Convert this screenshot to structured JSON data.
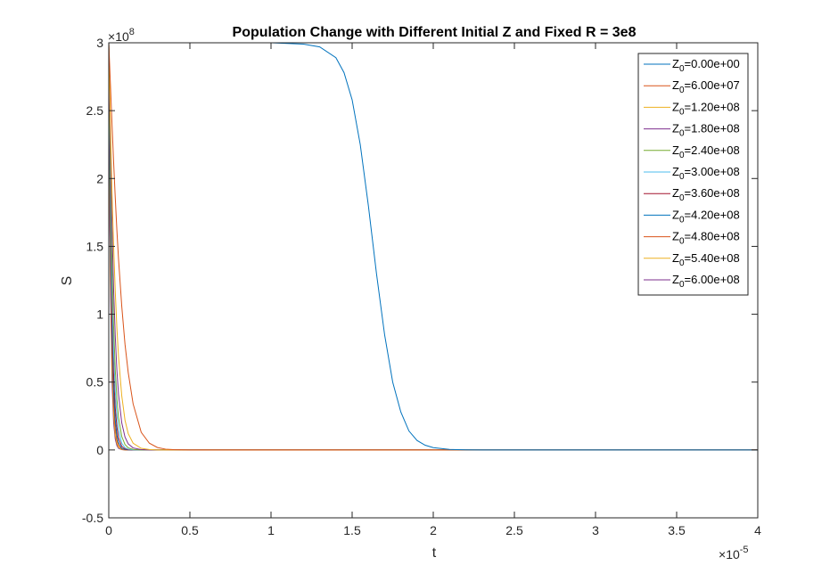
{
  "chart_data": {
    "type": "line",
    "title": "Population Change with Different Initial Z and Fixed R = 3e8",
    "xlabel": "t",
    "ylabel": "S",
    "xlim": [
      0,
      4e-05
    ],
    "ylim": [
      -50000000.0,
      300000000.0
    ],
    "x_ticks": [
      0,
      0.5,
      1,
      1.5,
      2,
      2.5,
      3,
      3.5,
      4
    ],
    "y_ticks": [
      -0.5,
      0,
      0.5,
      1,
      1.5,
      2,
      2.5,
      3
    ],
    "x_exponent": "10",
    "x_exponent_power": "-5",
    "y_exponent": "10",
    "y_exponent_power": "8",
    "grid": false,
    "legend_position": "top-right",
    "legend_prefix": "Z",
    "legend_subscript": "0",
    "x": [
      0,
      5e-08,
      1e-07,
      2e-07,
      3e-07,
      4e-07,
      5e-07,
      6e-07,
      8e-07,
      1e-06,
      1.2e-06,
      1.5e-06,
      2e-06,
      2.5e-06,
      3e-06,
      3.5e-06,
      4e-06,
      5e-06,
      6e-06,
      8e-06,
      1e-05,
      1.2e-05,
      1.3e-05,
      1.4e-05,
      1.45e-05,
      1.5e-05,
      1.55e-05,
      1.6e-05,
      1.65e-05,
      1.7e-05,
      1.75e-05,
      1.8e-05,
      1.85e-05,
      1.9e-05,
      1.95e-05,
      2e-05,
      2.1e-05,
      2.2e-05,
      2.3e-05,
      2.5e-05,
      3e-05,
      3.5e-05,
      4e-05
    ],
    "series": [
      {
        "name": "=0.00e+00",
        "color": "#0072BD",
        "values": [
          300000000.0,
          300000000.0,
          300000000.0,
          300000000.0,
          300000000.0,
          300000000.0,
          300000000.0,
          300000000.0,
          300000000.0,
          300000000.0,
          300000000.0,
          300000000.0,
          300000000.0,
          300000000.0,
          300000000.0,
          300000000.0,
          300000000.0,
          300000000.0,
          300000000.0,
          300000000.0,
          300000000.0,
          299000000.0,
          297000000.0,
          289000000.0,
          278000000.0,
          258000000.0,
          225000000.0,
          180000000.0,
          130000000.0,
          85000000.0,
          50000000.0,
          28000000.0,
          14000000.0,
          7000000.0,
          3500000.0,
          1700000.0,
          400000.0,
          100000.0,
          0,
          0,
          0,
          0,
          0
        ]
      },
      {
        "name": "=6.00e+07",
        "color": "#D95319",
        "values": [
          300000000.0,
          285000000.0,
          270000000.0,
          240000000.0,
          212000000.0,
          186000000.0,
          162000000.0,
          141000000.0,
          106000000.0,
          78000000.0,
          57000000.0,
          34000000.0,
          13000000.0,
          5000000.0,
          1800000.0,
          600000.0,
          200000.0,
          0,
          0,
          0,
          0,
          0,
          0,
          0,
          0,
          0,
          0,
          0,
          0,
          0,
          0,
          0,
          0,
          0,
          0,
          0,
          0,
          0,
          0,
          0,
          0,
          0,
          0
        ]
      },
      {
        "name": "=1.20e+08",
        "color": "#EDB120",
        "values": [
          300000000.0,
          270000000.0,
          240000000.0,
          190000000.0,
          150000000.0,
          117000000.0,
          90000000.0,
          69000000.0,
          40000000.0,
          22000000.0,
          12000000.0,
          5000000.0,
          1200000.0,
          300000.0,
          0,
          0,
          0,
          0,
          0,
          0,
          0,
          0,
          0,
          0,
          0,
          0,
          0,
          0,
          0,
          0,
          0,
          0,
          0,
          0,
          0,
          0,
          0,
          0,
          0,
          0,
          0,
          0,
          0
        ]
      },
      {
        "name": "=1.80e+08",
        "color": "#7E2F8E",
        "values": [
          300000000.0,
          260000000.0,
          225000000.0,
          165000000.0,
          118000000.0,
          84000000.0,
          59000000.0,
          41000000.0,
          20000000.0,
          9500000.0,
          4500000.0,
          1500000.0,
          200000.0,
          0,
          0,
          0,
          0,
          0,
          0,
          0,
          0,
          0,
          0,
          0,
          0,
          0,
          0,
          0,
          0,
          0,
          0,
          0,
          0,
          0,
          0,
          0,
          0,
          0,
          0,
          0,
          0,
          0,
          0
        ]
      },
      {
        "name": "=2.40e+08",
        "color": "#77AC30",
        "values": [
          300000000.0,
          250000000.0,
          205000000.0,
          138000000.0,
          91000000.0,
          59000000.0,
          38000000.0,
          24000000.0,
          10000000.0,
          4000000.0,
          1600000.0,
          400000.0,
          0,
          0,
          0,
          0,
          0,
          0,
          0,
          0,
          0,
          0,
          0,
          0,
          0,
          0,
          0,
          0,
          0,
          0,
          0,
          0,
          0,
          0,
          0,
          0,
          0,
          0,
          0,
          0,
          0,
          0,
          0
        ]
      },
      {
        "name": "=3.00e+08",
        "color": "#4DBEEE",
        "values": [
          300000000.0,
          240000000.0,
          190000000.0,
          118000000.0,
          72000000.0,
          43000000.0,
          26000000.0,
          15000000.0,
          5000000.0,
          1700000.0,
          600000.0,
          100000.0,
          0,
          0,
          0,
          0,
          0,
          0,
          0,
          0,
          0,
          0,
          0,
          0,
          0,
          0,
          0,
          0,
          0,
          0,
          0,
          0,
          0,
          0,
          0,
          0,
          0,
          0,
          0,
          0,
          0,
          0,
          0
        ]
      },
      {
        "name": "=3.60e+08",
        "color": "#A2142F",
        "values": [
          300000000.0,
          230000000.0,
          175000000.0,
          100000000.0,
          56000000.0,
          31000000.0,
          17000000.0,
          9000000.0,
          2700000.0,
          800000.0,
          200000.0,
          0,
          0,
          0,
          0,
          0,
          0,
          0,
          0,
          0,
          0,
          0,
          0,
          0,
          0,
          0,
          0,
          0,
          0,
          0,
          0,
          0,
          0,
          0,
          0,
          0,
          0,
          0,
          0,
          0,
          0,
          0,
          0
        ]
      },
      {
        "name": "=4.20e+08",
        "color": "#0072BD",
        "values": [
          300000000.0,
          220000000.0,
          160000000.0,
          85000000.0,
          44000000.0,
          22000000.0,
          11000000.0,
          5500000.0,
          1300000.0,
          300000.0,
          100000.0,
          0,
          0,
          0,
          0,
          0,
          0,
          0,
          0,
          0,
          0,
          0,
          0,
          0,
          0,
          0,
          0,
          0,
          0,
          0,
          0,
          0,
          0,
          0,
          0,
          0,
          0,
          0,
          0,
          0,
          0,
          0,
          0
        ]
      },
      {
        "name": "=4.80e+08",
        "color": "#D95319",
        "values": [
          300000000.0,
          210000000.0,
          147000000.0,
          72000000.0,
          34000000.0,
          16000000.0,
          7500000.0,
          3400000.0,
          700000.0,
          100000.0,
          0,
          0,
          0,
          0,
          0,
          0,
          0,
          0,
          0,
          0,
          0,
          0,
          0,
          0,
          0,
          0,
          0,
          0,
          0,
          0,
          0,
          0,
          0,
          0,
          0,
          0,
          0,
          0,
          0,
          0,
          0,
          0,
          0
        ]
      },
      {
        "name": "=5.40e+08",
        "color": "#EDB120",
        "values": [
          300000000.0,
          200000000.0,
          135000000.0,
          60000000.0,
          26000000.0,
          11000000.0,
          5000000.0,
          2000000.0,
          300000.0,
          0,
          0,
          0,
          0,
          0,
          0,
          0,
          0,
          0,
          0,
          0,
          0,
          0,
          0,
          0,
          0,
          0,
          0,
          0,
          0,
          0,
          0,
          0,
          0,
          0,
          0,
          0,
          0,
          0,
          0,
          0,
          0,
          0,
          0
        ]
      },
      {
        "name": "=6.00e+08",
        "color": "#7E2F8E",
        "values": [
          300000000.0,
          190000000.0,
          124000000.0,
          50000000.0,
          20000000.0,
          8000000.0,
          3200000.0,
          1200000.0,
          200000.0,
          0,
          0,
          0,
          0,
          0,
          0,
          0,
          0,
          0,
          0,
          0,
          0,
          0,
          0,
          0,
          0,
          0,
          0,
          0,
          0,
          0,
          0,
          0,
          0,
          0,
          0,
          0,
          0,
          0,
          0,
          0,
          0,
          0,
          0
        ]
      }
    ]
  }
}
